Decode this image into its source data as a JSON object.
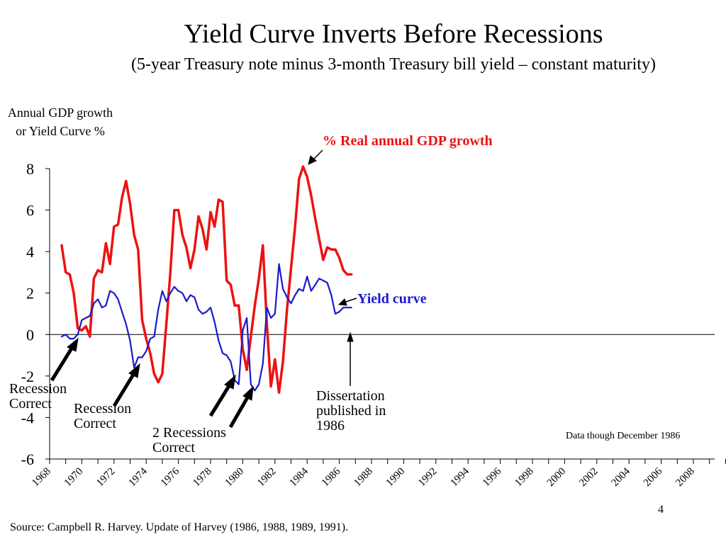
{
  "slide": {
    "title": "Yield Curve Inverts Before Recessions",
    "subtitle": "(5-year Treasury note minus 3-month Treasury bill yield – constant maturity)",
    "ylabel": "Annual GDP growth or Yield Curve %",
    "footer": "Source: Campbell R. Harvey. Update of Harvey (1986, 1988, 1989, 1991).",
    "page_number": "4",
    "data_note": "Data though December 1986"
  },
  "annotations": {
    "gdp_label": "% Real annual GDP growth",
    "yield_label": "Yield curve",
    "recession_1": "Recession Correct",
    "recession_2": "Recession Correct",
    "recession_3": "2 Recessions Correct",
    "dissertation": "Dissertation published in 1986"
  },
  "chart_data": {
    "type": "line",
    "title": "Yield Curve Inverts Before Recessions",
    "ylabel": "Annual GDP growth or Yield Curve %",
    "ylim": [
      -6,
      8
    ],
    "yticks": [
      "8",
      "6",
      "4",
      "2",
      "0",
      "-2",
      "-4",
      "-6"
    ],
    "xlim": [
      1968,
      2010
    ],
    "xticks": [
      "1968",
      "1970",
      "1972",
      "1974",
      "1976",
      "1978",
      "1980",
      "1982",
      "1984",
      "1986",
      "1988",
      "1990",
      "1992",
      "1994",
      "1996",
      "1998",
      "2000",
      "2002",
      "2004",
      "2006",
      "2008"
    ],
    "grid": false,
    "colors": {
      "gdp": "#ee1111",
      "yield": "#1a1acc",
      "axis": "#000000"
    },
    "series": [
      {
        "name": "% Real annual GDP growth",
        "x": [
          1968.75,
          1969,
          1969.25,
          1969.5,
          1969.75,
          1970,
          1970.25,
          1970.5,
          1970.75,
          1971,
          1971.25,
          1971.5,
          1971.75,
          1972,
          1972.25,
          1972.5,
          1972.75,
          1973,
          1973.25,
          1973.5,
          1973.75,
          1974,
          1974.25,
          1974.5,
          1974.75,
          1975,
          1975.25,
          1975.5,
          1975.75,
          1976,
          1976.25,
          1976.5,
          1976.75,
          1977,
          1977.25,
          1977.5,
          1977.75,
          1978,
          1978.25,
          1978.5,
          1978.75,
          1979,
          1979.25,
          1979.5,
          1979.75,
          1980,
          1980.25,
          1980.5,
          1980.75,
          1981,
          1981.25,
          1981.5,
          1981.75,
          1982,
          1982.25,
          1982.5,
          1982.75,
          1983,
          1983.25,
          1983.5,
          1983.75,
          1984,
          1984.25,
          1984.5,
          1984.75,
          1985,
          1985.25,
          1985.5,
          1985.75,
          1986,
          1986.25,
          1986.5,
          1986.75
        ],
        "values": [
          4.3,
          3.0,
          2.9,
          2.0,
          0.3,
          0.2,
          0.4,
          -0.1,
          2.7,
          3.1,
          3.0,
          4.4,
          3.4,
          5.2,
          5.3,
          6.6,
          7.4,
          6.3,
          4.8,
          4.1,
          0.7,
          -0.2,
          -0.9,
          -1.9,
          -2.3,
          -1.9,
          0.5,
          3.0,
          6.0,
          6.0,
          4.8,
          4.2,
          3.2,
          4.1,
          5.7,
          5.1,
          4.1,
          5.9,
          5.2,
          6.5,
          6.4,
          2.6,
          2.4,
          1.4,
          1.4,
          -0.7,
          -1.7,
          -0.1,
          1.4,
          2.7,
          4.3,
          0.5,
          -2.5,
          -1.2,
          -2.8,
          -1.3,
          1.2,
          3.2,
          5.2,
          7.5,
          8.1,
          7.6,
          6.7,
          5.6,
          4.6,
          3.6,
          4.2,
          4.1,
          4.1,
          3.7,
          3.1,
          2.9,
          2.9
        ]
      },
      {
        "name": "Yield curve",
        "x": [
          1968.75,
          1969,
          1969.25,
          1969.5,
          1969.75,
          1970,
          1970.25,
          1970.5,
          1970.75,
          1971,
          1971.25,
          1971.5,
          1971.75,
          1972,
          1972.25,
          1972.5,
          1972.75,
          1973,
          1973.25,
          1973.5,
          1973.75,
          1974,
          1974.25,
          1974.5,
          1974.75,
          1975,
          1975.25,
          1975.5,
          1975.75,
          1976,
          1976.25,
          1976.5,
          1976.75,
          1977,
          1977.25,
          1977.5,
          1977.75,
          1978,
          1978.25,
          1978.5,
          1978.75,
          1979,
          1979.25,
          1979.5,
          1979.75,
          1980,
          1980.25,
          1980.5,
          1980.75,
          1981,
          1981.25,
          1981.5,
          1981.75,
          1982,
          1982.25,
          1982.5,
          1982.75,
          1983,
          1983.25,
          1983.5,
          1983.75,
          1984,
          1984.25,
          1984.5,
          1984.75,
          1985,
          1985.25,
          1985.5,
          1985.75,
          1986,
          1986.25,
          1986.5,
          1986.75
        ],
        "values": [
          -0.1,
          0.0,
          -0.2,
          -0.2,
          0.0,
          0.7,
          0.8,
          0.9,
          1.5,
          1.7,
          1.3,
          1.4,
          2.1,
          2.0,
          1.7,
          1.1,
          0.5,
          -0.3,
          -1.6,
          -1.1,
          -1.1,
          -0.8,
          -0.2,
          -0.1,
          1.2,
          2.1,
          1.6,
          2.0,
          2.3,
          2.1,
          2.0,
          1.6,
          1.9,
          1.8,
          1.2,
          1.0,
          1.1,
          1.3,
          0.6,
          -0.3,
          -0.9,
          -1.0,
          -1.3,
          -2.2,
          -2.4,
          0.2,
          0.8,
          -2.4,
          -2.7,
          -2.4,
          -1.4,
          1.3,
          0.8,
          1.0,
          3.4,
          2.2,
          1.8,
          1.5,
          1.9,
          2.2,
          2.1,
          2.8,
          2.1,
          2.4,
          2.7,
          2.6,
          2.5,
          1.9,
          1.0,
          1.1,
          1.3,
          1.3,
          1.3
        ]
      }
    ]
  }
}
